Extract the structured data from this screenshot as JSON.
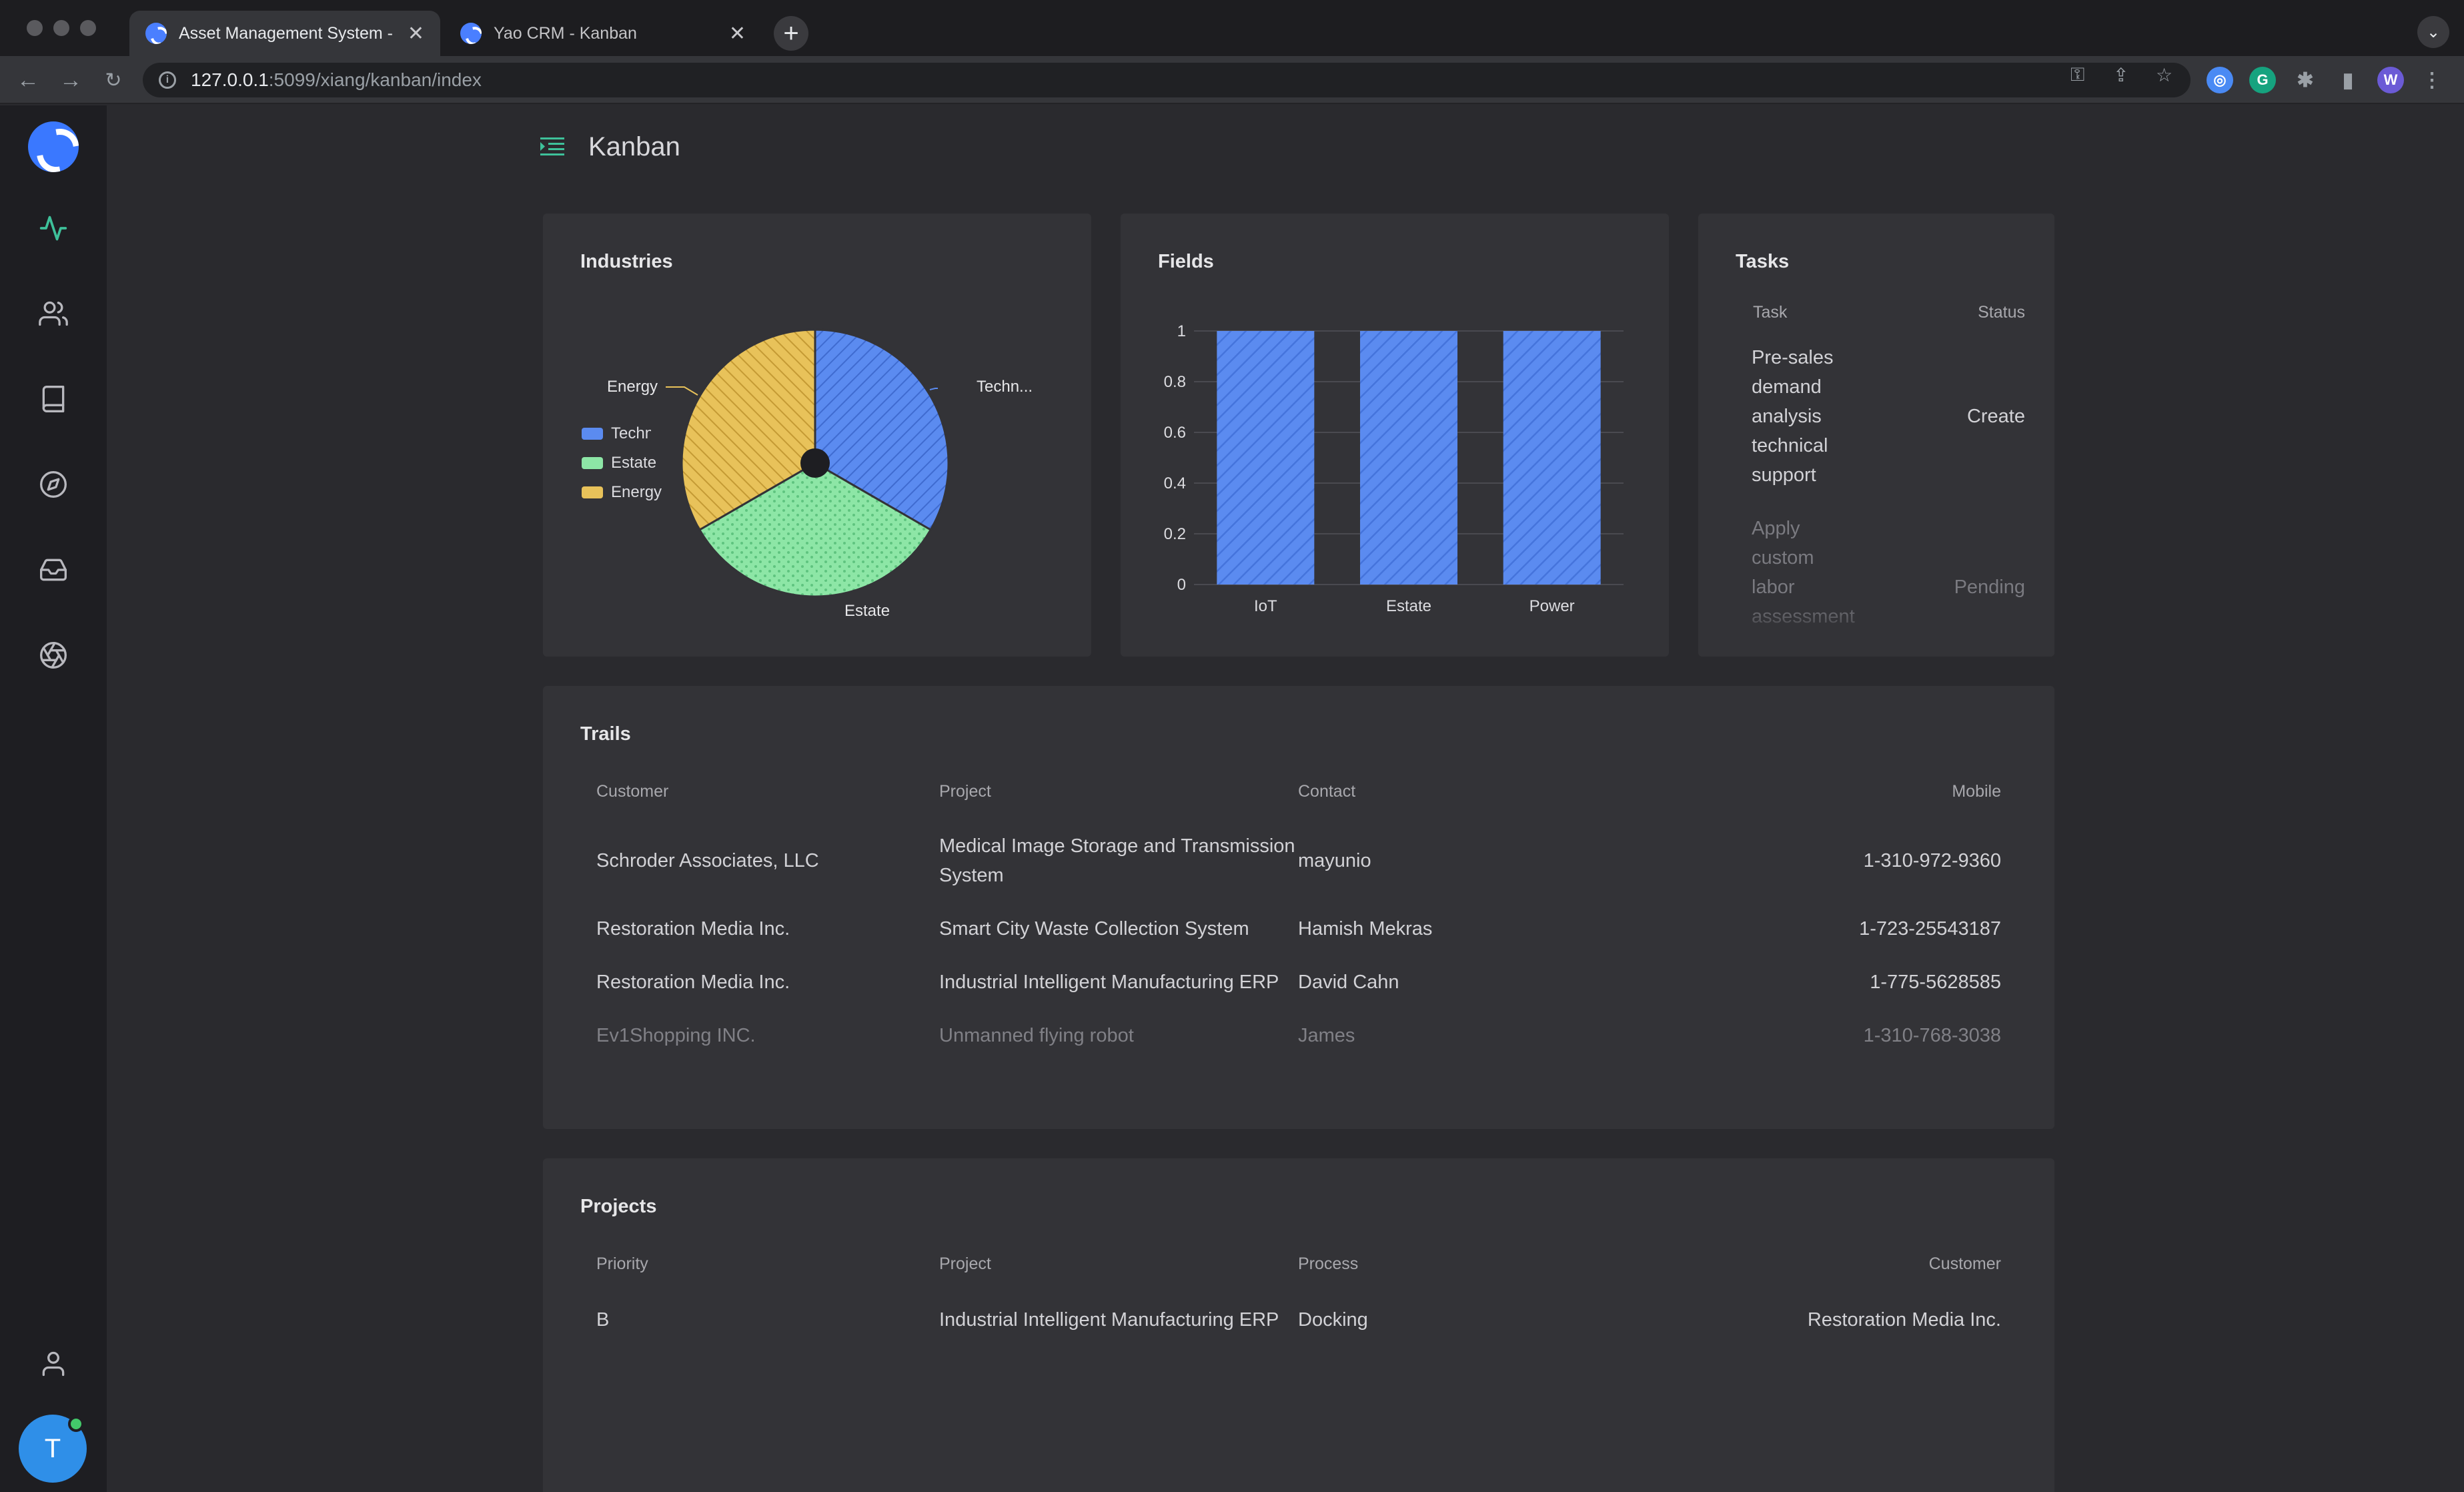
{
  "browser": {
    "tabs": [
      {
        "title": "Asset Management System - B",
        "active": true
      },
      {
        "title": "Yao CRM - Kanban",
        "active": false
      }
    ],
    "url_host": "127.0.0.1",
    "url_path": ":5099/xiang/kanban/index",
    "profile_initial": "W"
  },
  "sidebar": {
    "icons": [
      "activity-icon",
      "users-icon",
      "book-icon",
      "compass-icon",
      "inbox-icon",
      "aperture-icon"
    ],
    "user_icon": "user-icon",
    "avatar_initial": "T"
  },
  "page": {
    "title": "Kanban"
  },
  "industries": {
    "title": "Industries",
    "legend": [
      "Technolog",
      "Estate",
      "Energy"
    ],
    "labels": {
      "technology": "Techn...",
      "estate": "Estate",
      "energy": "Energy"
    }
  },
  "fields": {
    "title": "Fields"
  },
  "chart_data": [
    {
      "type": "pie",
      "title": "Industries",
      "categories": [
        "Technology",
        "Estate",
        "Energy"
      ],
      "values": [
        1,
        1,
        1
      ],
      "colors": [
        "#5b8bf0",
        "#8de6a6",
        "#e8c25a"
      ],
      "legend": "left"
    },
    {
      "type": "bar",
      "title": "Fields",
      "categories": [
        "IoT",
        "Estate",
        "Power"
      ],
      "values": [
        1,
        1,
        1
      ],
      "ylim": [
        0,
        1
      ],
      "yticks": [
        "0",
        "0.2",
        "0.4",
        "0.6",
        "0.8",
        "1"
      ],
      "grid": true,
      "color": "#5b8bf0"
    }
  ],
  "tasks": {
    "title": "Tasks",
    "headers": {
      "task": "Task",
      "status": "Status"
    },
    "rows": [
      {
        "task": [
          "Pre-sales",
          "demand",
          "analysis",
          "technical",
          "support"
        ],
        "status": "Create"
      },
      {
        "task": [
          "Apply",
          "custom",
          "labor",
          "assessment"
        ],
        "status": "Pending"
      }
    ]
  },
  "trails": {
    "title": "Trails",
    "headers": {
      "customer": "Customer",
      "project": "Project",
      "contact": "Contact",
      "mobile": "Mobile"
    },
    "rows": [
      {
        "customer": "Schroder Associates, LLC",
        "project": "Medical Image Storage and Transmission System",
        "contact": "mayunio",
        "mobile": "1-310-972-9360"
      },
      {
        "customer": "Restoration Media Inc.",
        "project": "Smart City Waste Collection System",
        "contact": "Hamish Mekras",
        "mobile": "1-723-25543187"
      },
      {
        "customer": "Restoration Media Inc.",
        "project": "Industrial Intelligent Manufacturing ERP",
        "contact": "David Cahn",
        "mobile": "1-775-5628585"
      },
      {
        "customer": "Ev1Shopping INC.",
        "project": "Unmanned flying robot",
        "contact": "James",
        "mobile": "1-310-768-3038"
      }
    ]
  },
  "projects": {
    "title": "Projects",
    "headers": {
      "priority": "Priority",
      "project": "Project",
      "process": "Process",
      "customer": "Customer"
    },
    "rows": [
      {
        "priority": "B",
        "project": "Industrial Intelligent Manufacturing ERP",
        "process": "Docking",
        "customer": "Restoration Media Inc."
      }
    ]
  }
}
